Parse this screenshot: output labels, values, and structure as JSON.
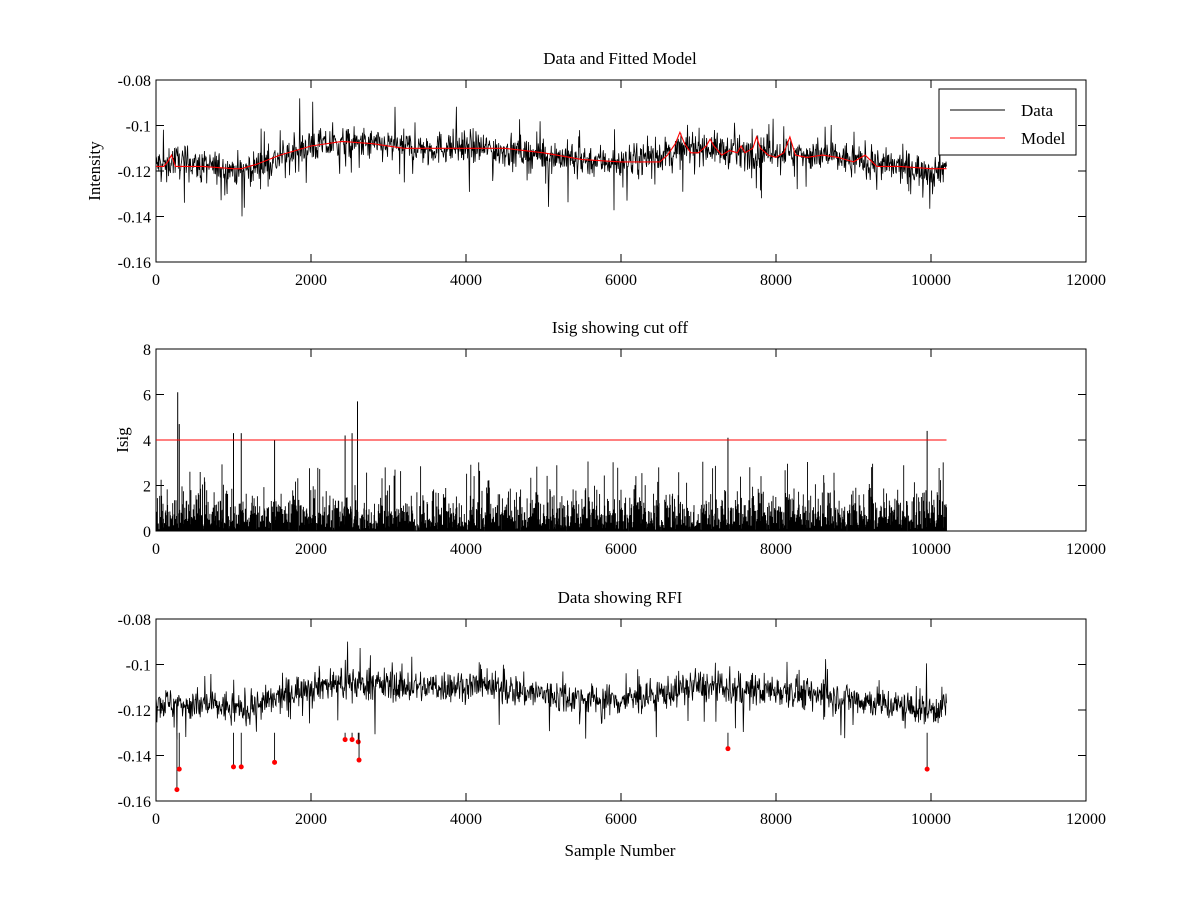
{
  "chart_data": [
    {
      "type": "line",
      "title": "Data and Fitted Model",
      "xlabel": "",
      "ylabel": "Intensity",
      "xlim": [
        0,
        12000
      ],
      "ylim": [
        -0.16,
        -0.08
      ],
      "xticks": [
        "0",
        "2000",
        "4000",
        "6000",
        "8000",
        "10000",
        "12000"
      ],
      "yticks": [
        "-0.08",
        "-0.1",
        "-0.12",
        "-0.14",
        "-0.16"
      ],
      "legend": {
        "placement": "top-right",
        "entries": [
          {
            "name": "Data",
            "color": "#000000"
          },
          {
            "name": "Model",
            "color": "#ff0000"
          }
        ]
      },
      "series": [
        {
          "name": "Data",
          "color": "#000000",
          "style": "noisy",
          "x": [
            0,
            150,
            200,
            600,
            1000,
            1100,
            1500,
            2000,
            2500,
            3000,
            3500,
            4000,
            4500,
            5000,
            5500,
            6000,
            6500,
            7000,
            7500,
            8000,
            8500,
            9000,
            9500,
            10000,
            10200
          ],
          "center": [
            -0.117,
            -0.117,
            -0.115,
            -0.118,
            -0.119,
            -0.12,
            -0.116,
            -0.109,
            -0.108,
            -0.109,
            -0.11,
            -0.109,
            -0.111,
            -0.113,
            -0.115,
            -0.116,
            -0.113,
            -0.109,
            -0.112,
            -0.111,
            -0.113,
            -0.115,
            -0.118,
            -0.12,
            -0.118
          ],
          "noise": 0.0065
        },
        {
          "name": "Model",
          "color": "#ff0000",
          "x": [
            0,
            100,
            150,
            200,
            250,
            600,
            1000,
            1100,
            1300,
            1600,
            2000,
            2400,
            2800,
            3200,
            3600,
            4000,
            4500,
            5000,
            5500,
            6000,
            6500,
            6600,
            6700,
            6760,
            6820,
            6900,
            7000,
            7100,
            7150,
            7200,
            7300,
            7400,
            7500,
            7550,
            7600,
            7700,
            7750,
            7800,
            7900,
            8000,
            8100,
            8180,
            8250,
            8400,
            8600,
            8800,
            9000,
            9150,
            9300,
            9600,
            10000,
            10200
          ],
          "y": [
            -0.118,
            -0.118,
            -0.116,
            -0.113,
            -0.118,
            -0.118,
            -0.119,
            -0.119,
            -0.117,
            -0.113,
            -0.109,
            -0.107,
            -0.108,
            -0.11,
            -0.11,
            -0.11,
            -0.11,
            -0.112,
            -0.115,
            -0.116,
            -0.116,
            -0.113,
            -0.108,
            -0.103,
            -0.108,
            -0.112,
            -0.112,
            -0.109,
            -0.106,
            -0.109,
            -0.113,
            -0.111,
            -0.112,
            -0.109,
            -0.112,
            -0.11,
            -0.105,
            -0.11,
            -0.113,
            -0.114,
            -0.112,
            -0.105,
            -0.113,
            -0.114,
            -0.113,
            -0.114,
            -0.116,
            -0.113,
            -0.118,
            -0.118,
            -0.119,
            -0.119
          ]
        }
      ]
    },
    {
      "type": "line",
      "title": "Isig showing cut off",
      "xlabel": "",
      "ylabel": "Isig",
      "xlim": [
        0,
        12000
      ],
      "ylim": [
        0,
        8
      ],
      "xticks": [
        "0",
        "2000",
        "4000",
        "6000",
        "8000",
        "10000",
        "12000"
      ],
      "yticks": [
        "0",
        "2",
        "4",
        "6",
        "8"
      ],
      "series": [
        {
          "name": "Isig",
          "color": "#000000",
          "style": "spikes",
          "x_range": [
            0,
            10200
          ],
          "typical_max": 1.8,
          "peaks": [
            {
              "x": 280,
              "y": 6.1
            },
            {
              "x": 300,
              "y": 4.7
            },
            {
              "x": 1000,
              "y": 4.3
            },
            {
              "x": 1100,
              "y": 4.3
            },
            {
              "x": 1530,
              "y": 4.0
            },
            {
              "x": 2440,
              "y": 4.2
            },
            {
              "x": 2530,
              "y": 4.3
            },
            {
              "x": 2600,
              "y": 5.7
            },
            {
              "x": 7380,
              "y": 4.1
            },
            {
              "x": 9950,
              "y": 4.4
            }
          ]
        },
        {
          "name": "Cut off",
          "color": "#ff0000",
          "x": [
            0,
            10200
          ],
          "y": [
            4,
            4
          ]
        }
      ]
    },
    {
      "type": "line",
      "title": "Data showing RFI",
      "xlabel": "Sample Number",
      "ylabel": "",
      "xlim": [
        0,
        12000
      ],
      "ylim": [
        -0.16,
        -0.08
      ],
      "xticks": [
        "0",
        "2000",
        "4000",
        "6000",
        "8000",
        "10000",
        "12000"
      ],
      "yticks": [
        "-0.08",
        "-0.1",
        "-0.12",
        "-0.14",
        "-0.16"
      ],
      "series": [
        {
          "name": "Data",
          "color": "#000000",
          "style": "noisy",
          "x": [
            0,
            200,
            600,
            1000,
            1100,
            1500,
            2000,
            2500,
            3000,
            3500,
            4000,
            4500,
            5000,
            5500,
            6000,
            6500,
            7000,
            7500,
            8000,
            8500,
            9000,
            9500,
            10000,
            10200
          ],
          "center": [
            -0.117,
            -0.117,
            -0.118,
            -0.119,
            -0.12,
            -0.116,
            -0.109,
            -0.108,
            -0.109,
            -0.11,
            -0.109,
            -0.111,
            -0.113,
            -0.115,
            -0.116,
            -0.113,
            -0.109,
            -0.112,
            -0.111,
            -0.113,
            -0.115,
            -0.118,
            -0.12,
            -0.118
          ],
          "noise": 0.0065
        },
        {
          "name": "RFI",
          "color": "#ff0000",
          "style": "markers",
          "x": [
            270,
            300,
            1000,
            1100,
            1530,
            2440,
            2530,
            2610,
            2620,
            7380,
            9950
          ],
          "y": [
            -0.155,
            -0.146,
            -0.145,
            -0.145,
            -0.143,
            -0.133,
            -0.133,
            -0.134,
            -0.142,
            -0.137,
            -0.146
          ]
        }
      ]
    }
  ]
}
